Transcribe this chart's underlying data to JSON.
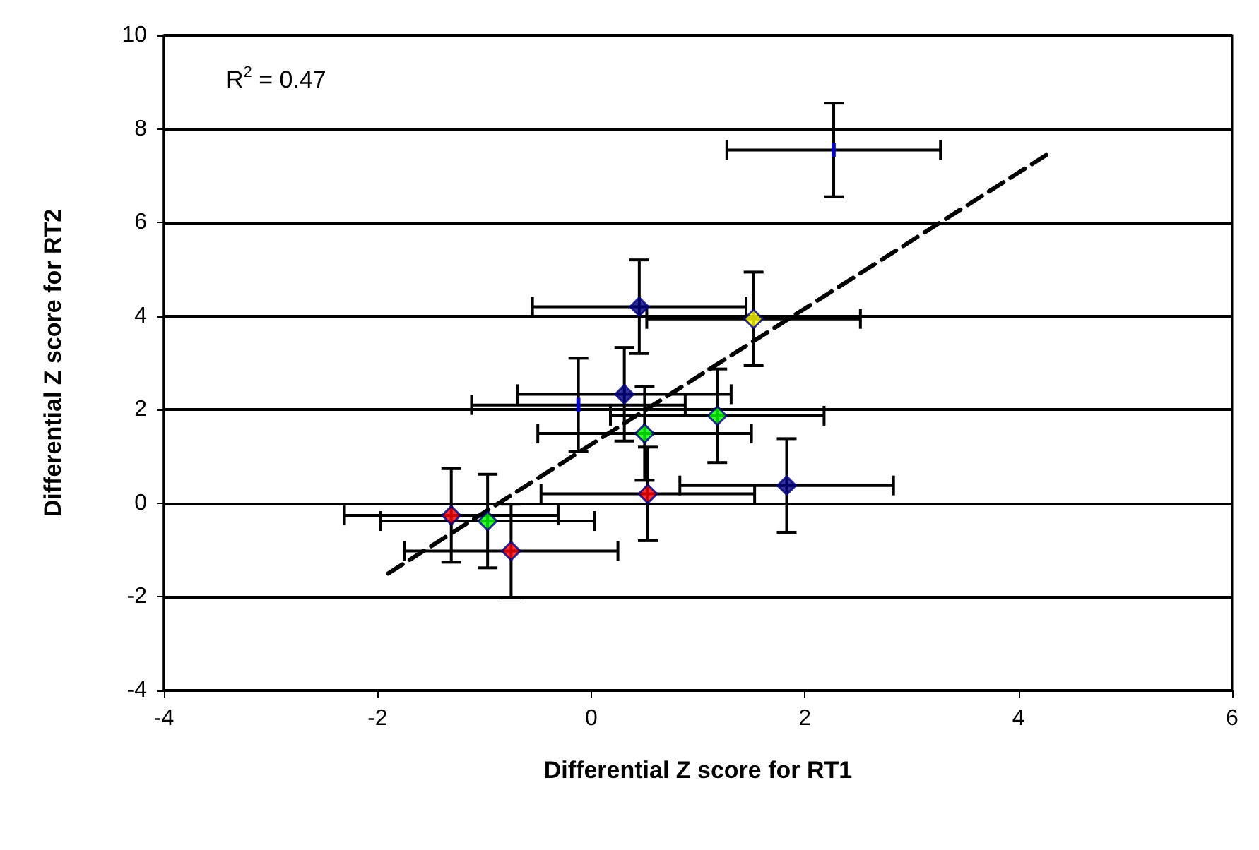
{
  "chart_data": {
    "type": "scatter",
    "xlabel": "Differential Z score for RT1",
    "ylabel": "Differential Z score for RT2",
    "xlim": [
      -4,
      6
    ],
    "xticks": [
      -4,
      -2,
      0,
      2,
      4,
      6
    ],
    "ylim": [
      -4,
      10
    ],
    "yticks": [
      -4,
      -2,
      0,
      2,
      4,
      6,
      8,
      10
    ],
    "grid": "y",
    "annotations": [
      "R$^{2}$ = 0.47"
    ],
    "series": [
      {
        "color": "#000080",
        "marker": "diamond",
        "x": [
          0.45,
          0.31,
          1.83
        ],
        "values": [
          4.2,
          2.33,
          0.38
        ],
        "errors": [
          1.0,
          1.0,
          1.0
        ],
        "xerrors": [
          1.0,
          1.0,
          1.0
        ]
      },
      {
        "color": "#ffff00",
        "marker": "diamond",
        "x": [
          1.52
        ],
        "values": [
          3.94
        ],
        "errors": [
          1.0
        ],
        "xerrors": [
          1.0
        ]
      },
      {
        "color": "#00ff00",
        "marker": "diamond",
        "x": [
          1.18,
          0.5,
          -0.97
        ],
        "values": [
          1.87,
          1.49,
          -0.38
        ],
        "errors": [
          1.0,
          1.0,
          1.0
        ],
        "xerrors": [
          1.0,
          1.0,
          1.0
        ]
      },
      {
        "color": "#ff0000",
        "marker": "diamond",
        "x": [
          0.53,
          -1.31,
          -0.75
        ],
        "values": [
          0.2,
          -0.26,
          -1.02
        ],
        "errors": [
          1.0,
          1.0,
          1.0
        ],
        "xerrors": [
          1.0,
          1.0,
          1.0
        ]
      },
      {
        "color": "#0000ff",
        "marker": "square",
        "x": [
          2.27,
          -0.12
        ],
        "values": [
          7.55,
          2.1
        ],
        "errors": [
          1.0,
          1.0
        ],
        "xerrors": [
          1.0,
          1.0
        ]
      },
      {
        "type": "line",
        "color": "#000000",
        "marker": "none",
        "line_style": "dashed",
        "x": [
          -1.9,
          4.3
        ],
        "values": [
          -1.5,
          7.5
        ]
      }
    ]
  }
}
